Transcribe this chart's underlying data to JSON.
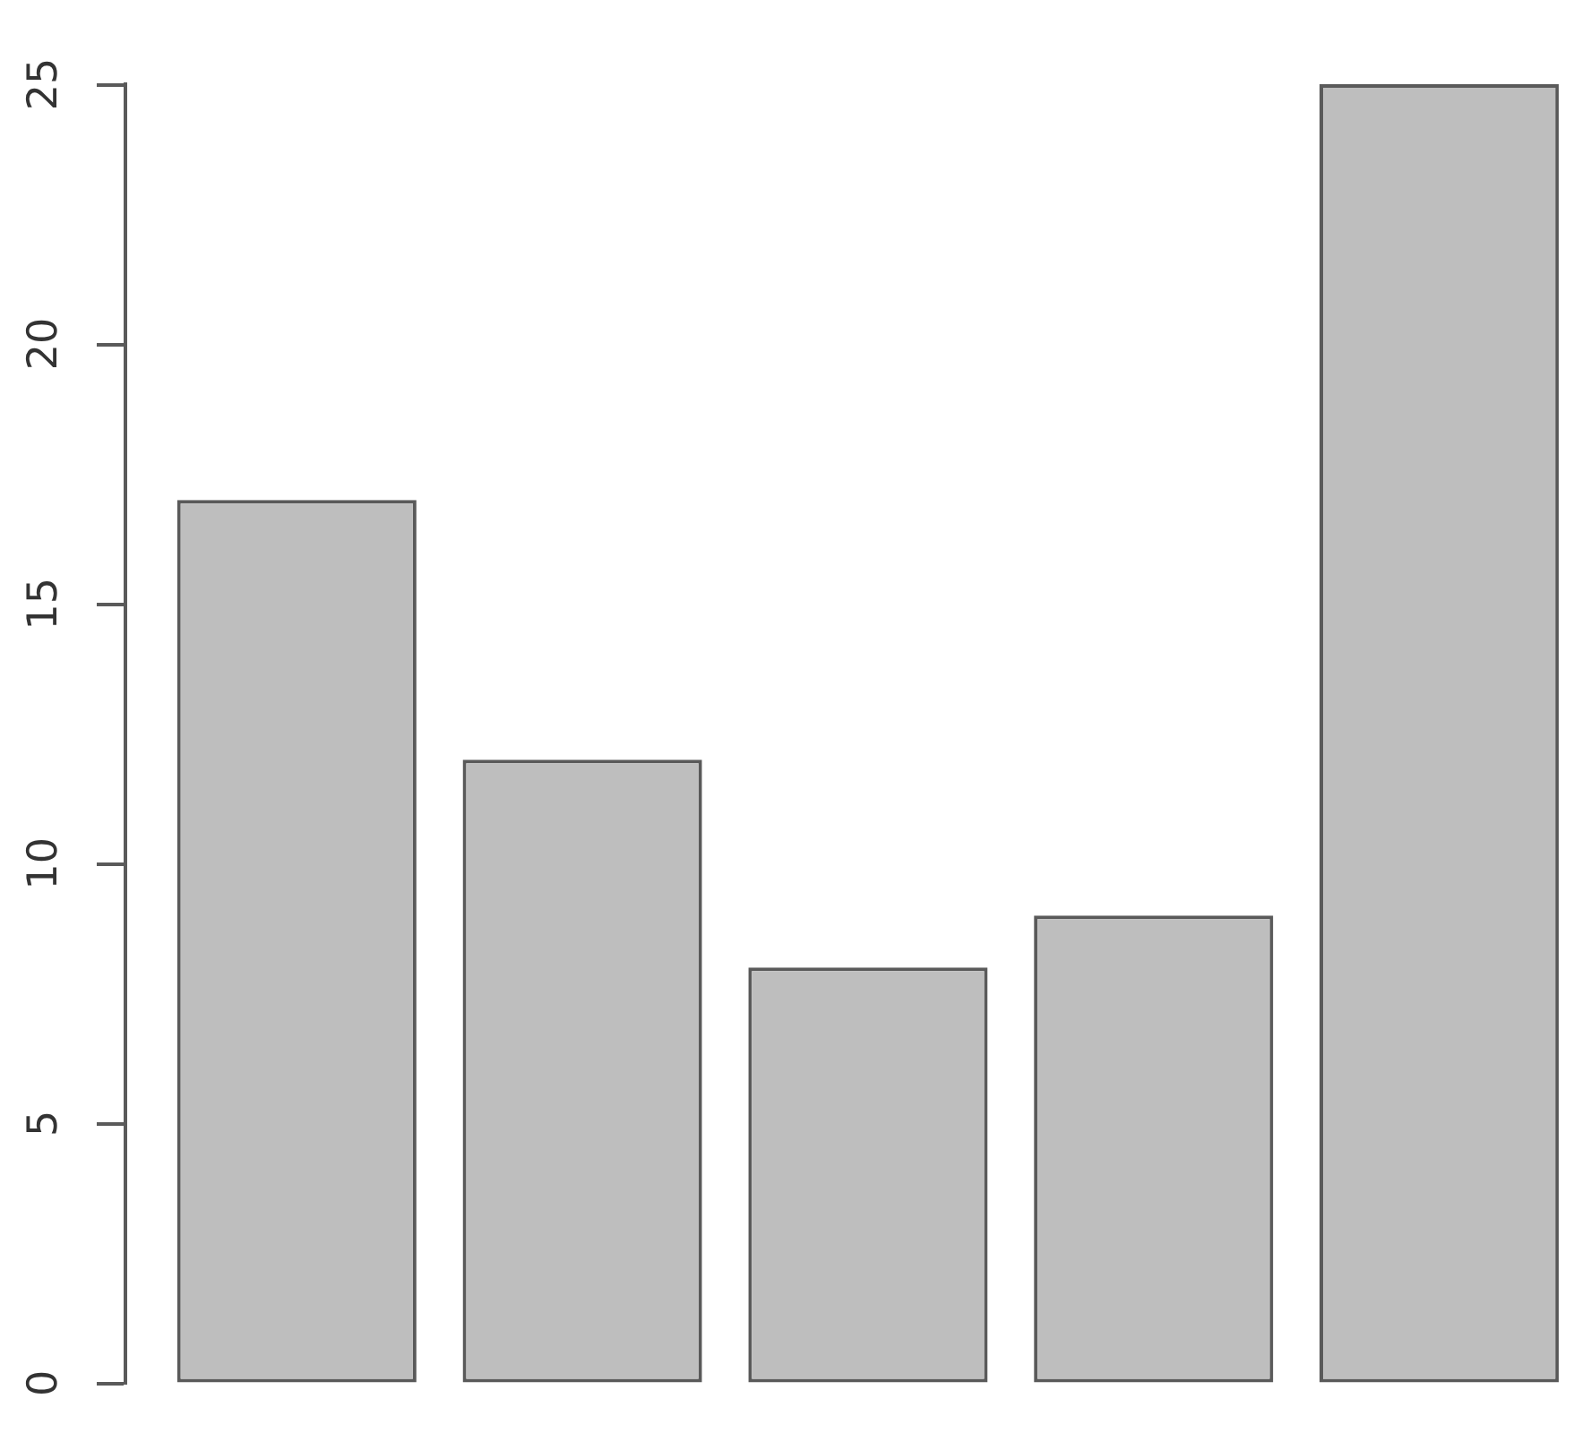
{
  "chart_data": {
    "type": "bar",
    "categories": [
      null,
      null,
      null,
      null,
      null
    ],
    "values": [
      17,
      12,
      8,
      9,
      25
    ],
    "color": "#bebebe",
    "ylim": [
      0,
      25
    ],
    "yticks": [
      0,
      5,
      10,
      15,
      20,
      25
    ],
    "grid": false,
    "legend": false
  }
}
